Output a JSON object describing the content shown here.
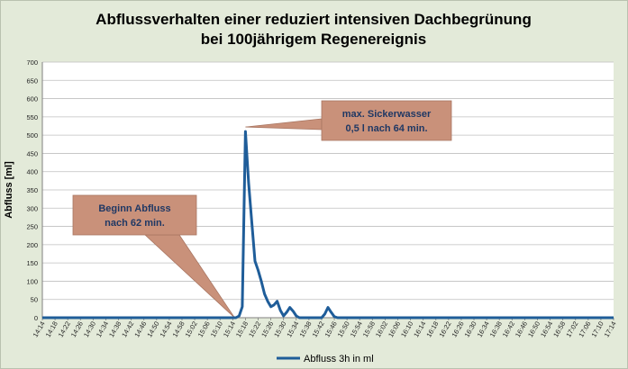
{
  "chart_data": {
    "type": "line",
    "title": [
      "Abflussverhalten einer reduziert intensiven Dachbegrünung",
      "bei 100jährigem Regenereignis"
    ],
    "ylabel": "Abfluss [ml]",
    "xlabel": "",
    "ylim": [
      0,
      700
    ],
    "yticks": [
      0,
      50,
      100,
      150,
      200,
      250,
      300,
      350,
      400,
      450,
      500,
      550,
      600,
      650,
      700
    ],
    "x_tick_labels": [
      "14:14",
      "14:18",
      "14:22",
      "14:26",
      "14:30",
      "14:34",
      "14:38",
      "14:42",
      "14:46",
      "14:50",
      "14:54",
      "14:58",
      "15:02",
      "15:06",
      "15:10",
      "15:14",
      "15:18",
      "15:22",
      "15:26",
      "15:30",
      "15:34",
      "15:38",
      "15:42",
      "15:46",
      "15:50",
      "15:54",
      "15:58",
      "16:02",
      "16:06",
      "16:10",
      "16:14",
      "16:18",
      "16:22",
      "16:26",
      "16:30",
      "16:34",
      "16:38",
      "16:42",
      "16:46",
      "16:50",
      "16:54",
      "16:58",
      "17:02",
      "17:06",
      "17:10",
      "17:14"
    ],
    "grid": "horizontal",
    "legend_position": "bottom",
    "series": [
      {
        "name": "Abfluss 3h in ml",
        "color": "#1f5d99",
        "points": [
          [
            "14:14",
            0
          ],
          [
            "15:15",
            0
          ],
          [
            "15:16",
            5
          ],
          [
            "15:17",
            30
          ],
          [
            "15:18",
            510
          ],
          [
            "15:19",
            370
          ],
          [
            "15:20",
            260
          ],
          [
            "15:21",
            155
          ],
          [
            "15:22",
            130
          ],
          [
            "15:23",
            100
          ],
          [
            "15:24",
            65
          ],
          [
            "15:25",
            45
          ],
          [
            "15:26",
            30
          ],
          [
            "15:27",
            35
          ],
          [
            "15:28",
            45
          ],
          [
            "15:29",
            20
          ],
          [
            "15:30",
            5
          ],
          [
            "15:31",
            15
          ],
          [
            "15:32",
            28
          ],
          [
            "15:33",
            18
          ],
          [
            "15:34",
            5
          ],
          [
            "15:35",
            0
          ],
          [
            "15:42",
            0
          ],
          [
            "15:43",
            10
          ],
          [
            "15:44",
            28
          ],
          [
            "15:45",
            15
          ],
          [
            "15:46",
            3
          ],
          [
            "15:47",
            0
          ],
          [
            "17:14",
            0
          ]
        ]
      }
    ],
    "annotations": [
      {
        "lines": [
          "max. Sickerwasser",
          "0,5 l nach 64 min."
        ],
        "target": [
          "15:18",
          510
        ]
      },
      {
        "lines": [
          "Beginn Abfluss",
          "nach 62 min."
        ],
        "target": [
          "15:16",
          0
        ]
      }
    ]
  }
}
